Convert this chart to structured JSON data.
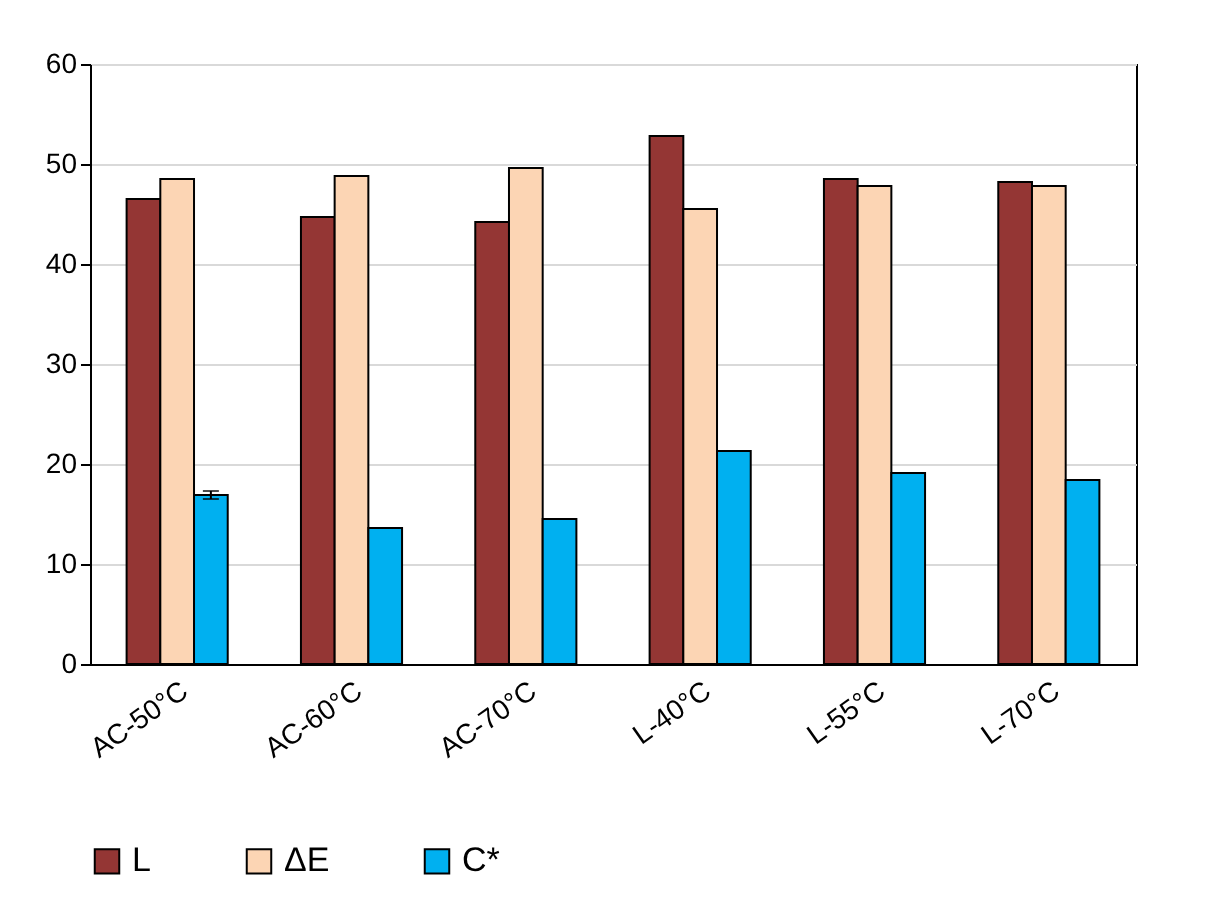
{
  "chart_data": {
    "type": "bar",
    "categories": [
      "AC-50°C",
      "AC-60°C",
      "AC-70°C",
      "L-40°C",
      "L-55°C",
      "L-70°C"
    ],
    "series": [
      {
        "name": "L",
        "color": "#943634",
        "values": [
          46.5,
          44.7,
          44.2,
          52.8,
          48.5,
          48.2
        ]
      },
      {
        "name": "ΔE",
        "color": "#fcd5b4",
        "values": [
          48.5,
          48.8,
          49.6,
          45.5,
          47.8,
          47.8
        ]
      },
      {
        "name": "C*",
        "color": "#00b0f0",
        "values": [
          16.9,
          13.6,
          14.5,
          21.3,
          19.1,
          18.4
        ],
        "errors": [
          0.4,
          null,
          null,
          null,
          null,
          null
        ]
      }
    ],
    "ylim": [
      0,
      60
    ],
    "yticks": [
      0,
      10,
      20,
      30,
      40,
      50,
      60
    ],
    "grid": "y",
    "legend": "bottom"
  }
}
